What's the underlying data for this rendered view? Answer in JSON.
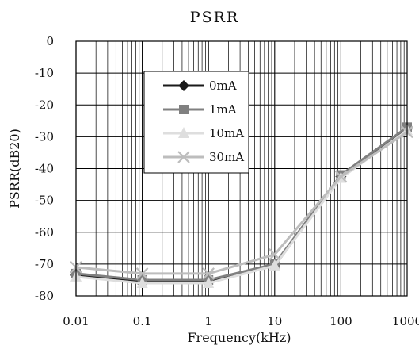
{
  "chart_data": {
    "type": "line",
    "title": "PSRR",
    "xlabel": "Frequency(kHz)",
    "ylabel": "PSRR(dB20)",
    "x_scale": "log",
    "xlim": [
      0.01,
      1000
    ],
    "ylim": [
      -80,
      0
    ],
    "x_ticks": [
      0.01,
      0.1,
      1,
      10,
      100,
      1000
    ],
    "x_tick_labels": [
      "0.01",
      "0.1",
      "1",
      "10",
      "100",
      "1000"
    ],
    "y_ticks": [
      0,
      -10,
      -20,
      -30,
      -40,
      -50,
      -60,
      -70,
      -80
    ],
    "y_tick_labels": [
      "0",
      "-10",
      "-20",
      "-30",
      "-40",
      "-50",
      "-60",
      "-70",
      "-80"
    ],
    "grid": true,
    "legend_position": "upper-center",
    "x": [
      0.01,
      0.1,
      1,
      10,
      100,
      1000
    ],
    "series": [
      {
        "name": "0mA",
        "color": "#1a1a1a",
        "marker": "diamond",
        "values": [
          -73.5,
          -75.5,
          -75.5,
          -70.5,
          -42.5,
          -27.5
        ]
      },
      {
        "name": "1mA",
        "color": "#808080",
        "marker": "square",
        "values": [
          -73.0,
          -75.0,
          -75.0,
          -70.0,
          -42.0,
          -27.0
        ]
      },
      {
        "name": "10mA",
        "color": "#dedede",
        "marker": "triangle",
        "values": [
          -74.0,
          -76.0,
          -76.0,
          -70.5,
          -43.0,
          -28.0
        ]
      },
      {
        "name": "30mA",
        "color": "#bdbdbd",
        "marker": "x",
        "values": [
          -71.0,
          -73.0,
          -73.0,
          -67.0,
          -42.5,
          -28.5
        ]
      }
    ]
  }
}
